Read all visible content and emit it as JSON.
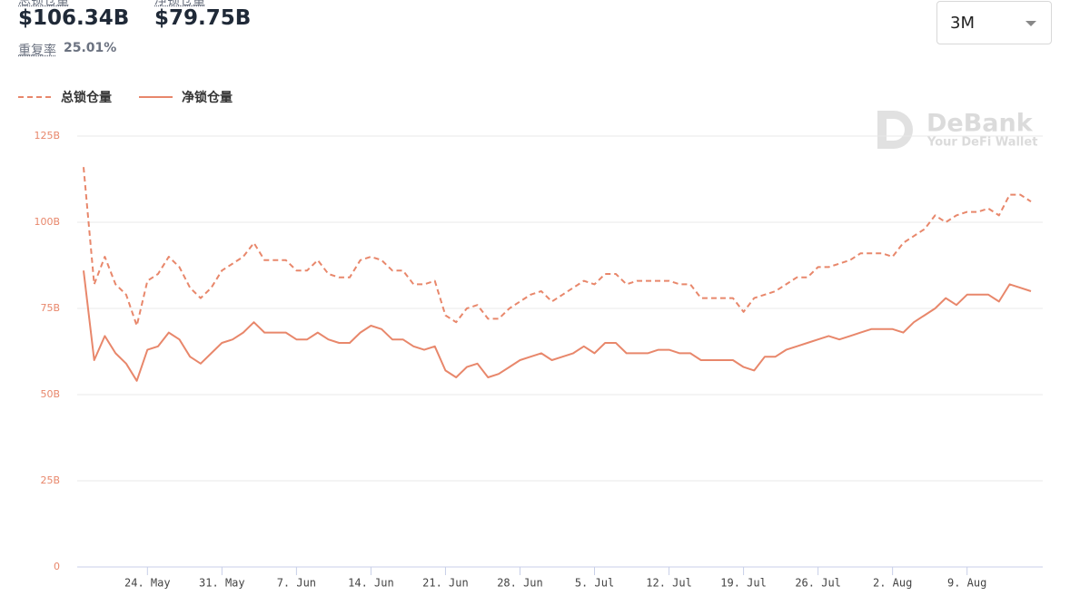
{
  "header": {
    "stats": [
      {
        "label": "总锁仓量",
        "value": "$106.34B"
      },
      {
        "label": "净锁仓量",
        "value": "$79.75B"
      }
    ],
    "overlap_label": "重复率",
    "overlap_value": "25.01%"
  },
  "range_select": "3M",
  "watermark": {
    "brand": "DeBank",
    "tagline": "Your DeFi Wallet"
  },
  "chart_data": {
    "type": "line",
    "categories": [
      null,
      null,
      null,
      null,
      null,
      null,
      "24. May",
      null,
      null,
      null,
      null,
      null,
      null,
      "31. May",
      null,
      null,
      null,
      null,
      null,
      null,
      "7. Jun",
      null,
      null,
      null,
      null,
      null,
      null,
      "14. Jun",
      null,
      null,
      null,
      null,
      null,
      null,
      "21. Jun",
      null,
      null,
      null,
      null,
      null,
      null,
      "28. Jun",
      null,
      null,
      null,
      null,
      null,
      null,
      "5. Jul",
      null,
      null,
      null,
      null,
      null,
      null,
      "12. Jul",
      null,
      null,
      null,
      null,
      null,
      null,
      "19. Jul",
      null,
      null,
      null,
      null,
      null,
      null,
      "26. Jul",
      null,
      null,
      null,
      null,
      null,
      null,
      "2. Aug",
      null,
      null,
      null,
      null,
      null,
      null,
      "9. Aug",
      null,
      null,
      null,
      null,
      null,
      null
    ],
    "series": [
      {
        "name": "总锁仓量",
        "color": "#e8876b",
        "style": "dashed",
        "values": [
          116,
          82,
          90,
          82,
          79,
          70,
          83,
          85,
          90,
          87,
          81,
          78,
          81,
          86,
          88,
          90,
          94,
          89,
          89,
          89,
          86,
          86,
          89,
          85,
          84,
          84,
          89,
          90,
          89,
          86,
          86,
          82,
          82,
          83,
          73,
          71,
          75,
          76,
          72,
          72,
          75,
          77,
          79,
          80,
          77,
          79,
          81,
          83,
          82,
          85,
          85,
          82,
          83,
          83,
          83,
          83,
          82,
          82,
          78,
          78,
          78,
          78,
          74,
          78,
          79,
          80,
          82,
          84,
          84,
          87,
          87,
          88,
          89,
          91,
          91,
          91,
          90,
          94,
          96,
          98,
          102,
          100,
          102,
          103,
          103,
          104,
          102,
          108,
          108,
          106
        ]
      },
      {
        "name": "净锁仓量",
        "color": "#e8876b",
        "style": "solid",
        "values": [
          86,
          60,
          67,
          62,
          59,
          54,
          63,
          64,
          68,
          66,
          61,
          59,
          62,
          65,
          66,
          68,
          71,
          68,
          68,
          68,
          66,
          66,
          68,
          66,
          65,
          65,
          68,
          70,
          69,
          66,
          66,
          64,
          63,
          64,
          57,
          55,
          58,
          59,
          55,
          56,
          58,
          60,
          61,
          62,
          60,
          61,
          62,
          64,
          62,
          65,
          65,
          62,
          62,
          62,
          63,
          63,
          62,
          62,
          60,
          60,
          60,
          60,
          58,
          57,
          61,
          61,
          63,
          64,
          65,
          66,
          67,
          66,
          67,
          68,
          69,
          69,
          69,
          68,
          71,
          73,
          75,
          78,
          76,
          79,
          79,
          79,
          77,
          82,
          81,
          80
        ]
      }
    ],
    "ylim": [
      0,
      125
    ],
    "yticks": [
      0,
      {
        "value": 25,
        "label": "25B"
      },
      {
        "value": 50,
        "label": "50B"
      },
      {
        "value": 75,
        "label": "75B"
      },
      {
        "value": 100,
        "label": "100B"
      },
      {
        "value": 125,
        "label": "125B"
      }
    ],
    "grid": true
  }
}
